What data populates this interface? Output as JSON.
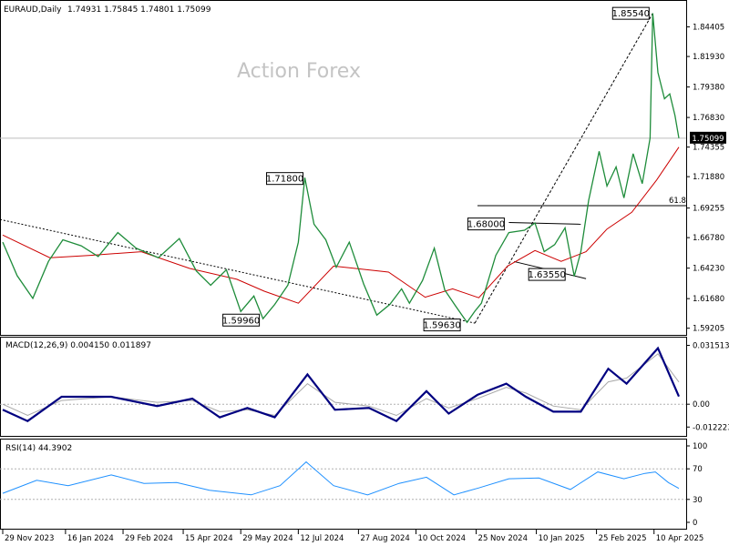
{
  "header": {
    "symbol_line": "EURAUD,Daily",
    "ohlc": "1.74931 1.75845 1.74801 1.75099"
  },
  "watermark": "Action Forex",
  "colors": {
    "price": "#1e8c3a",
    "ma": "#cc0000",
    "macd": "#000080",
    "signal": "#a8a8a8",
    "rsi": "#1e90ff",
    "current_price_box": "#000000"
  },
  "chart_data": [
    {
      "type": "line",
      "panel": "price",
      "x_range": [
        "2023-11-29",
        "2025-04-29"
      ],
      "y_range": [
        1.588,
        1.8635
      ],
      "x_tick_labels": [
        "29 Nov 2023",
        "16 Jan 2024",
        "29 Feb 2024",
        "15 Apr 2024",
        "29 May 2024",
        "12 Jul 2024",
        "27 Aug 2024",
        "10 Oct 2024",
        "25 Nov 2024",
        "10 Jan 2025",
        "25 Feb 2025",
        "10 Apr 2025"
      ],
      "y_tick_labels": [
        "1.84405",
        "1.81930",
        "1.79380",
        "1.76830",
        "1.74355",
        "1.71880",
        "1.69255",
        "1.66780",
        "1.64230",
        "1.61680",
        "1.59205"
      ],
      "y_ticks": [
        1.84405,
        1.8193,
        1.7938,
        1.7683,
        1.74355,
        1.7188,
        1.69255,
        1.6678,
        1.6423,
        1.6168,
        1.59205
      ],
      "current_price": "1.75099",
      "fib_label": "61.8",
      "series": [
        {
          "role": "price",
          "x": [
            "2023-11-29",
            "2023-12-10",
            "2023-12-22",
            "2024-01-03",
            "2024-01-14",
            "2024-01-28",
            "2024-02-10",
            "2024-02-25",
            "2024-03-10",
            "2024-03-27",
            "2024-04-12",
            "2024-04-25",
            "2024-05-06",
            "2024-05-18",
            "2024-05-29",
            "2024-06-08",
            "2024-06-15",
            "2024-06-24",
            "2024-07-04",
            "2024-07-12",
            "2024-07-17",
            "2024-07-24",
            "2024-08-02",
            "2024-08-10",
            "2024-08-20",
            "2024-08-31",
            "2024-09-10",
            "2024-09-20",
            "2024-09-29",
            "2024-10-05",
            "2024-10-15",
            "2024-10-24",
            "2024-11-01",
            "2024-11-09",
            "2024-11-18",
            "2024-11-24",
            "2024-11-29",
            "2024-12-10",
            "2024-12-20",
            "2025-01-01",
            "2025-01-09",
            "2025-01-16",
            "2025-01-24",
            "2025-02-01",
            "2025-02-08",
            "2025-02-13",
            "2025-02-19",
            "2025-02-27",
            "2025-03-05",
            "2025-03-12",
            "2025-03-18",
            "2025-03-25",
            "2025-04-01",
            "2025-04-07",
            "2025-04-09",
            "2025-04-13",
            "2025-04-18",
            "2025-04-22",
            "2025-04-26",
            "2025-04-29"
          ],
          "y": [
            1.664,
            1.636,
            1.617,
            1.648,
            1.666,
            1.661,
            1.652,
            1.672,
            1.659,
            1.651,
            1.667,
            1.64,
            1.628,
            1.641,
            1.606,
            1.619,
            1.6,
            1.612,
            1.628,
            1.664,
            1.718,
            1.679,
            1.666,
            1.643,
            1.664,
            1.629,
            1.603,
            1.612,
            1.625,
            1.613,
            1.632,
            1.659,
            1.624,
            1.611,
            1.597,
            1.6063,
            1.613,
            1.653,
            1.672,
            1.674,
            1.68,
            1.656,
            1.662,
            1.676,
            1.6355,
            1.656,
            1.699,
            1.74,
            1.711,
            1.727,
            1.701,
            1.738,
            1.713,
            1.751,
            1.8554,
            1.806,
            1.784,
            1.788,
            1.77,
            1.751
          ]
        },
        {
          "role": "ma",
          "x": [
            "2023-11-29",
            "2024-01-04",
            "2024-02-04",
            "2024-03-14",
            "2024-04-20",
            "2024-05-26",
            "2024-06-16",
            "2024-07-12",
            "2024-08-08",
            "2024-09-19",
            "2024-10-17",
            "2024-11-07",
            "2024-11-27",
            "2024-12-19",
            "2025-01-09",
            "2025-01-29",
            "2025-02-17",
            "2025-03-05",
            "2025-03-24",
            "2025-04-12",
            "2025-04-29"
          ],
          "y": [
            1.67,
            1.651,
            1.653,
            1.656,
            1.642,
            1.633,
            1.623,
            1.613,
            1.644,
            1.639,
            1.618,
            1.625,
            1.6175,
            1.644,
            1.657,
            1.648,
            1.656,
            1.675,
            1.689,
            1.716,
            1.7435
          ]
        }
      ],
      "annotations": [
        {
          "label": "1.85540",
          "x": "2025-04-09",
          "y": 1.8554
        },
        {
          "label": "1.71800",
          "x": "2024-07-17",
          "y": 1.718
        },
        {
          "label": "1.68000",
          "x": "2024-12-20",
          "y": 1.68
        },
        {
          "label": "1.63550",
          "x": "2025-02-08",
          "y": 1.6355
        },
        {
          "label": "1.59960",
          "x": "2024-06-15",
          "y": 1.5996
        },
        {
          "label": "1.59630",
          "x": "2024-11-24",
          "y": 1.5963
        }
      ]
    },
    {
      "type": "line",
      "panel": "macd",
      "title": "MACD(12,26,9) 0.004150 0.011897",
      "y_range": [
        -0.0155,
        0.0342
      ],
      "y_tick_labels": [
        "0.031513",
        "0.00",
        "-0.012223"
      ],
      "y_ticks": [
        0.031513,
        0.0,
        -0.012223
      ],
      "x": [
        "2023-11-29",
        "2023-12-18",
        "2024-01-13",
        "2024-02-20",
        "2024-03-26",
        "2024-04-22",
        "2024-05-13",
        "2024-06-03",
        "2024-06-24",
        "2024-07-19",
        "2024-08-09",
        "2024-09-04",
        "2024-09-25",
        "2024-10-18",
        "2024-11-04",
        "2024-11-26",
        "2024-12-18",
        "2025-01-02",
        "2025-01-23",
        "2025-02-13",
        "2025-03-06",
        "2025-03-20",
        "2025-04-13",
        "2025-04-29"
      ],
      "series": [
        {
          "role": "macd",
          "values": [
            -0.003,
            -0.009,
            0.004,
            0.004,
            -0.001,
            0.003,
            -0.007,
            -0.002,
            -0.007,
            0.016,
            -0.003,
            -0.002,
            -0.009,
            0.007,
            -0.005,
            0.005,
            0.011,
            0.004,
            -0.004,
            -0.004,
            0.019,
            0.011,
            0.03,
            0.00415
          ]
        },
        {
          "role": "signal",
          "values": [
            0.0,
            -0.006,
            0.002,
            0.004,
            0.001,
            0.002,
            -0.004,
            -0.003,
            -0.006,
            0.011,
            0.001,
            -0.001,
            -0.006,
            0.003,
            -0.002,
            0.003,
            0.009,
            0.006,
            -0.001,
            -0.003,
            0.012,
            0.014,
            0.027,
            0.011897
          ]
        }
      ]
    },
    {
      "type": "line",
      "panel": "rsi",
      "title": "RSI(14) 44.3902",
      "y_range": [
        0,
        100
      ],
      "y_tick_labels": [
        "100",
        "70",
        "30",
        "0"
      ],
      "y_ticks": [
        100,
        70,
        30,
        0
      ],
      "levels": [
        70,
        30
      ],
      "x": [
        "2023-11-29",
        "2023-12-25",
        "2024-01-18",
        "2024-02-20",
        "2024-03-16",
        "2024-04-10",
        "2024-05-05",
        "2024-06-06",
        "2024-06-28",
        "2024-07-18",
        "2024-08-08",
        "2024-09-03",
        "2024-09-27",
        "2024-10-18",
        "2024-11-08",
        "2024-11-27",
        "2024-12-20",
        "2025-01-12",
        "2025-02-05",
        "2025-02-26",
        "2025-03-18",
        "2025-04-03",
        "2025-04-11",
        "2025-04-21",
        "2025-04-29"
      ],
      "values": [
        38,
        55,
        48,
        62,
        51,
        52,
        42,
        36,
        48,
        79,
        48,
        36,
        51,
        59,
        36,
        45,
        57,
        58,
        43,
        66,
        57,
        64,
        66,
        52,
        44.3902
      ]
    }
  ]
}
